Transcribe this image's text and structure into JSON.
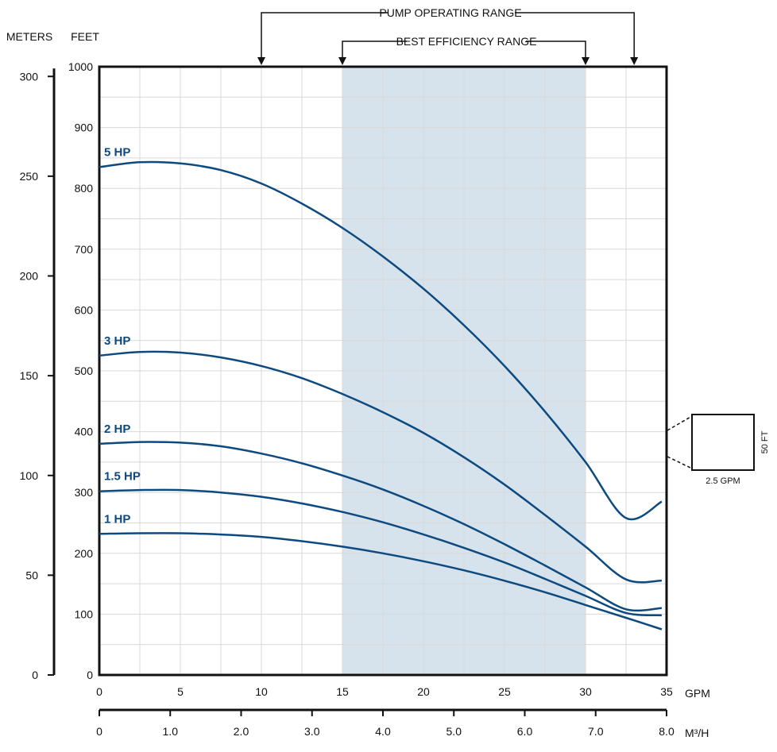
{
  "colors": {
    "curve": "#0d4a80",
    "band": "#d6e2ec",
    "grid": "#d9d9d9",
    "axis": "#111111"
  },
  "chart_data": {
    "type": "line",
    "x_unit": "GPM",
    "x_ticks": [
      "0",
      "5",
      "10",
      "15",
      "20",
      "25",
      "30",
      "35"
    ],
    "xlim": [
      0,
      35
    ],
    "x2_unit": "M³/H",
    "x2_ticks": [
      "0",
      "1.0",
      "2.0",
      "3.0",
      "4.0",
      "5.0",
      "6.0",
      "7.0",
      "8.0"
    ],
    "x2lim": [
      0,
      8
    ],
    "y_unit": "FEET",
    "y_ticks": [
      "0",
      "100",
      "200",
      "300",
      "400",
      "500",
      "600",
      "700",
      "800",
      "900",
      "1000"
    ],
    "ylim": [
      0,
      1000
    ],
    "y2_unit": "METERS",
    "y2_ticks": [
      "0",
      "50",
      "100",
      "150",
      "200",
      "250",
      "300"
    ],
    "y2lim": [
      0,
      300
    ],
    "grid": true,
    "series": [
      {
        "name": "5 HP",
        "x": [
          0,
          2.5,
          5,
          7.5,
          10,
          12.5,
          15,
          17.5,
          20,
          22.5,
          25,
          27.5,
          30,
          32.5,
          34.7
        ],
        "values": [
          835,
          843,
          841,
          830,
          808,
          775,
          735,
          688,
          635,
          575,
          508,
          433,
          350,
          258,
          285
        ]
      },
      {
        "name": "3 HP",
        "x": [
          0,
          2.5,
          5,
          7.5,
          10,
          12.5,
          15,
          17.5,
          20,
          22.5,
          25,
          27.5,
          30,
          32.5,
          34.7
        ],
        "values": [
          525,
          531,
          530,
          522,
          508,
          488,
          462,
          432,
          398,
          358,
          313,
          263,
          211,
          157,
          155
        ]
      },
      {
        "name": "2 HP",
        "x": [
          0,
          2.5,
          5,
          7.5,
          10,
          12.5,
          15,
          17.5,
          20,
          22.5,
          25,
          27.5,
          30,
          32.5,
          34.7
        ],
        "values": [
          380,
          383,
          382,
          376,
          364,
          348,
          328,
          305,
          278,
          248,
          215,
          180,
          144,
          108,
          110
        ]
      },
      {
        "name": "1.5 HP",
        "x": [
          0,
          2.5,
          5,
          7.5,
          10,
          12.5,
          15,
          17.5,
          20,
          22.5,
          25,
          27.5,
          30,
          32.5,
          34.7
        ],
        "values": [
          302,
          304,
          304,
          300,
          293,
          282,
          268,
          251,
          231,
          209,
          185,
          158,
          130,
          102,
          98
        ]
      },
      {
        "name": "1 HP",
        "x": [
          0,
          2.5,
          5,
          7.5,
          10,
          12.5,
          15,
          17.5,
          20,
          22.5,
          25,
          27.5,
          30,
          32.5,
          34.7
        ],
        "values": [
          232,
          233,
          233,
          231,
          227,
          220,
          211,
          200,
          187,
          172,
          155,
          136,
          115,
          94,
          75
        ]
      }
    ],
    "annotations": {
      "operating_range": {
        "label": "PUMP OPERATING RANGE",
        "x": [
          10,
          33
        ]
      },
      "best_efficiency_range": {
        "label": "BEST EFFICIENCY RANGE",
        "x": [
          15,
          30
        ]
      },
      "scale_box": {
        "height_label": "50 FT",
        "width_label": "2.5 GPM"
      }
    }
  }
}
